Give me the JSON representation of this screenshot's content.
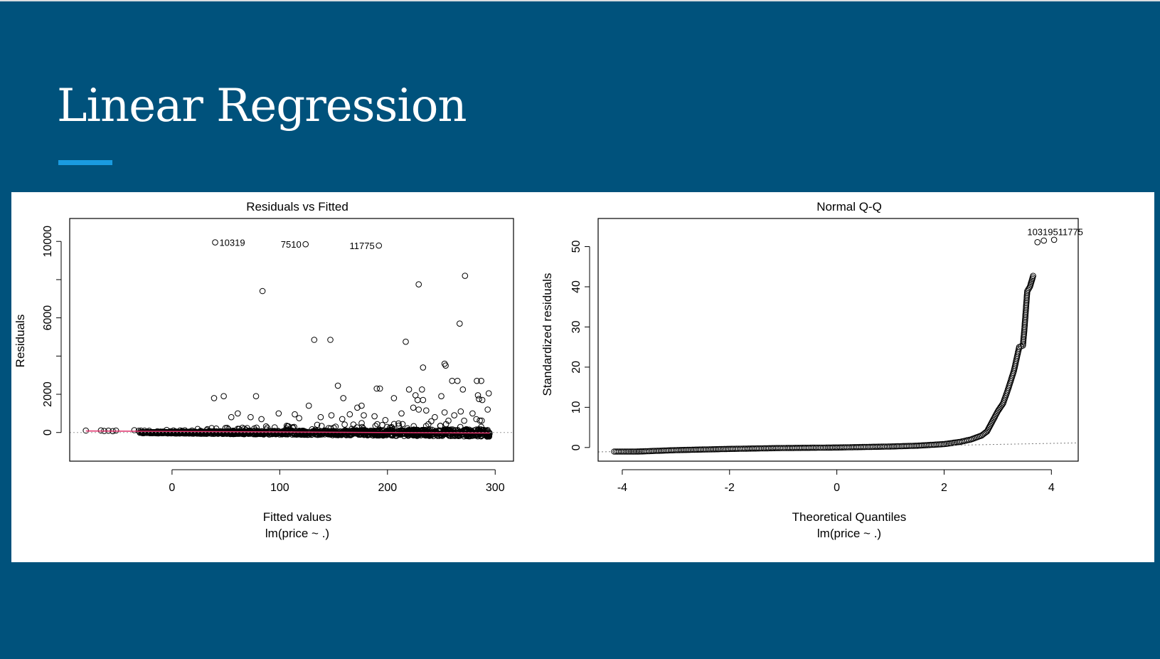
{
  "slide": {
    "title": "Linear Regression",
    "background_color": "#00527c",
    "accent_color": "#1a9be0"
  },
  "chart_data": [
    {
      "type": "scatter",
      "title": "Residuals vs Fitted",
      "xlabel": "Fitted values",
      "subtitle": "lm(price ~ .)",
      "ylabel": "Residuals",
      "xlim": [
        -95,
        317
      ],
      "ylim": [
        -1500,
        11200
      ],
      "x_ticks": [
        0,
        100,
        200,
        300
      ],
      "y_ticks": [
        0,
        2000,
        4000,
        6000,
        8000,
        10000
      ],
      "y_tick_labels": [
        "0",
        "2000",
        "",
        "6000",
        "",
        "10000"
      ],
      "reference_line": {
        "y": 0,
        "style": "dotted",
        "color": "#999999"
      },
      "smoother_color": "#e0306a",
      "labeled_points": [
        {
          "x": 40,
          "y": 9950,
          "label": "10319"
        },
        {
          "x": 124,
          "y": 9850,
          "label": "7510"
        },
        {
          "x": 192,
          "y": 9780,
          "label": "11775"
        }
      ],
      "outliers": [
        [
          84,
          7400
        ],
        [
          229,
          7750
        ],
        [
          272,
          8200
        ],
        [
          132,
          4850
        ],
        [
          147,
          4850
        ],
        [
          217,
          4750
        ],
        [
          267,
          5700
        ],
        [
          253,
          3600
        ],
        [
          254,
          3500
        ],
        [
          233,
          3400
        ],
        [
          260,
          2700
        ],
        [
          265,
          2700
        ],
        [
          283,
          2700
        ],
        [
          287,
          2700
        ],
        [
          154,
          2450
        ],
        [
          190,
          2300
        ],
        [
          193,
          2300
        ],
        [
          220,
          2250
        ],
        [
          232,
          2250
        ],
        [
          270,
          2250
        ],
        [
          39,
          1800
        ],
        [
          48,
          1900
        ],
        [
          78,
          1900
        ],
        [
          159,
          1800
        ],
        [
          206,
          1800
        ],
        [
          226,
          1950
        ],
        [
          228,
          1700
        ],
        [
          233,
          1700
        ],
        [
          250,
          1900
        ],
        [
          284,
          1950
        ],
        [
          285,
          1750
        ],
        [
          288,
          1700
        ],
        [
          294,
          2050
        ],
        [
          127,
          1400
        ],
        [
          172,
          1300
        ],
        [
          176,
          1400
        ],
        [
          224,
          1300
        ],
        [
          229,
          1200
        ],
        [
          236,
          1150
        ],
        [
          293,
          1200
        ],
        [
          61,
          1000
        ],
        [
          99,
          1000
        ],
        [
          114,
          950
        ],
        [
          148,
          900
        ],
        [
          165,
          950
        ],
        [
          178,
          900
        ],
        [
          213,
          1000
        ],
        [
          253,
          1050
        ],
        [
          268,
          1100
        ],
        [
          279,
          1000
        ],
        [
          55,
          800
        ],
        [
          73,
          800
        ],
        [
          83,
          700
        ],
        [
          118,
          750
        ],
        [
          138,
          800
        ],
        [
          158,
          700
        ],
        [
          188,
          850
        ],
        [
          198,
          650
        ],
        [
          244,
          800
        ],
        [
          262,
          900
        ]
      ],
      "left_tail": [
        [
          -80,
          100
        ],
        [
          -66,
          110
        ],
        [
          -63,
          80
        ],
        [
          -59,
          95
        ],
        [
          -55,
          70
        ],
        [
          -52,
          100
        ],
        [
          -35,
          120
        ],
        [
          -31,
          90
        ],
        [
          -29,
          100
        ]
      ]
    },
    {
      "type": "scatter",
      "title": "Normal Q-Q",
      "xlabel": "Theoretical Quantiles",
      "subtitle": "lm(price ~ .)",
      "ylabel": "Standardized residuals",
      "xlim": [
        -4.45,
        4.5
      ],
      "ylim": [
        -3.4,
        57
      ],
      "x_ticks": [
        -4,
        -2,
        0,
        2,
        4
      ],
      "y_ticks": [
        0,
        10,
        20,
        30,
        40,
        50
      ],
      "reference_line": {
        "x": [
          -4.45,
          4.5
        ],
        "y": [
          -1.1,
          1.15
        ],
        "style": "dotted",
        "color": "#777777"
      },
      "labeled_points_text": "10319511775",
      "labeled_points": [
        {
          "x": 3.74,
          "y": 51.1
        },
        {
          "x": 3.86,
          "y": 51.5
        },
        {
          "x": 4.05,
          "y": 51.7
        }
      ],
      "curve": [
        [
          -4.15,
          -1.0
        ],
        [
          -3.9,
          -1.0
        ],
        [
          -3.75,
          -1.0
        ],
        [
          -3.66,
          -0.98
        ],
        [
          -3.6,
          -0.95
        ],
        [
          -3.5,
          -0.9
        ],
        [
          -3.0,
          -0.65
        ],
        [
          -2.5,
          -0.5
        ],
        [
          -2.0,
          -0.35
        ],
        [
          -1.0,
          -0.12
        ],
        [
          0.0,
          0.0
        ],
        [
          1.0,
          0.25
        ],
        [
          1.5,
          0.45
        ],
        [
          2.0,
          0.85
        ],
        [
          2.3,
          1.4
        ],
        [
          2.5,
          2.0
        ],
        [
          2.7,
          3.0
        ],
        [
          2.8,
          4.0
        ],
        [
          2.9,
          6.5
        ],
        [
          3.0,
          9.0
        ],
        [
          3.1,
          11.0
        ],
        [
          3.18,
          14.0
        ],
        [
          3.3,
          19.0
        ],
        [
          3.4,
          25.0
        ],
        [
          3.47,
          25.4
        ],
        [
          3.5,
          30.0
        ],
        [
          3.55,
          38.9
        ],
        [
          3.6,
          40.0
        ],
        [
          3.66,
          42.7
        ]
      ]
    }
  ]
}
